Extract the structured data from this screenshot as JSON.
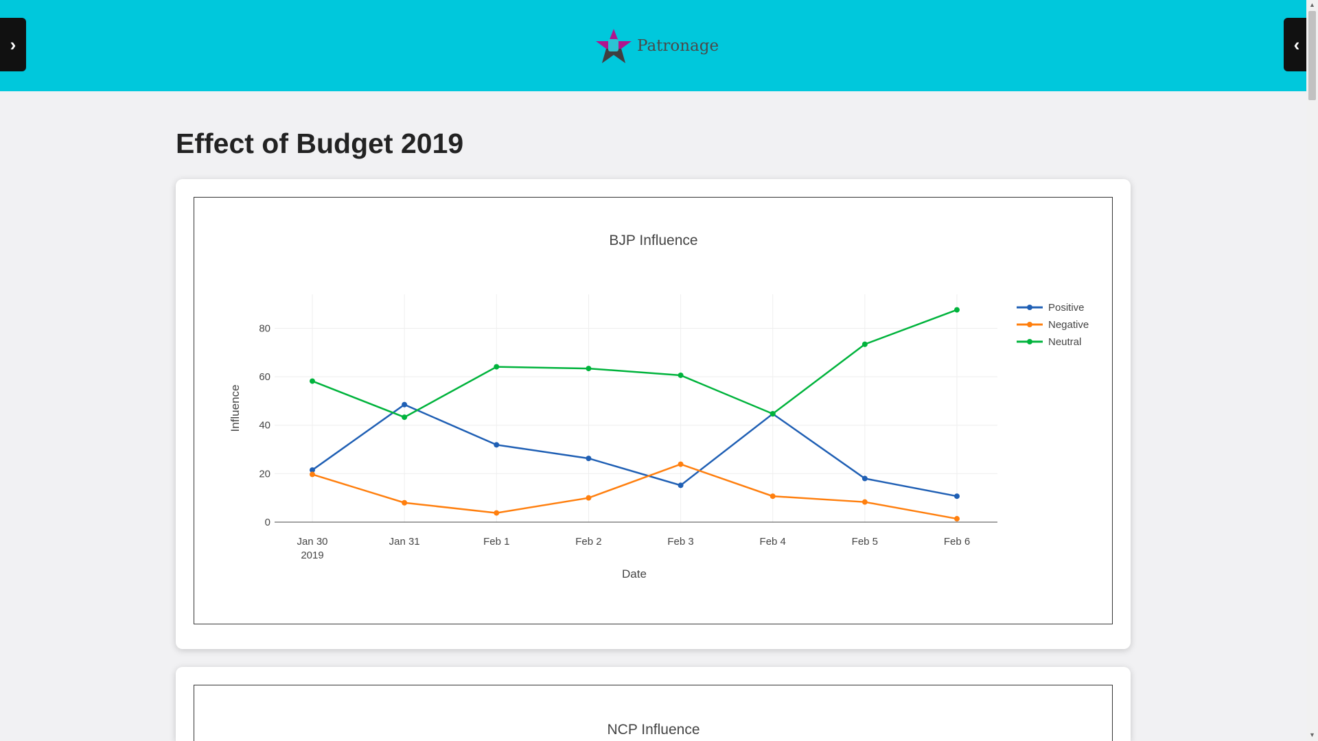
{
  "header": {
    "logo_text": "Patronage",
    "left_toggle": "›",
    "right_toggle": "‹"
  },
  "page_title": "Effect of Budget 2019",
  "colors": {
    "header": "#00c8dc",
    "positive": "#1f5fb4",
    "negative": "#ff7f0e",
    "neutral": "#00b33c"
  },
  "chart_data": [
    {
      "type": "line",
      "title": "BJP Influence",
      "xlabel": "Date",
      "ylabel": "Influence",
      "categories": [
        "Jan 30\n2019",
        "Jan 31",
        "Feb 1",
        "Feb 2",
        "Feb 3",
        "Feb 4",
        "Feb 5",
        "Feb 6"
      ],
      "yticks": [
        0,
        20,
        40,
        60,
        80
      ],
      "ylim": [
        0,
        94
      ],
      "grid": true,
      "legend": "top-right",
      "series": [
        {
          "name": "Positive",
          "color": "#1f5fb4",
          "values": [
            21.5,
            48.5,
            31.9,
            26.3,
            15.2,
            44.7,
            18.0,
            10.7
          ]
        },
        {
          "name": "Negative",
          "color": "#ff7f0e",
          "values": [
            19.7,
            8.0,
            3.8,
            10.0,
            23.9,
            10.7,
            8.3,
            1.4
          ]
        },
        {
          "name": "Neutral",
          "color": "#00b33c",
          "values": [
            58.2,
            43.3,
            64.1,
            63.4,
            60.6,
            44.7,
            73.4,
            87.6
          ]
        }
      ]
    },
    {
      "type": "line",
      "title": "NCP Influence"
    }
  ]
}
